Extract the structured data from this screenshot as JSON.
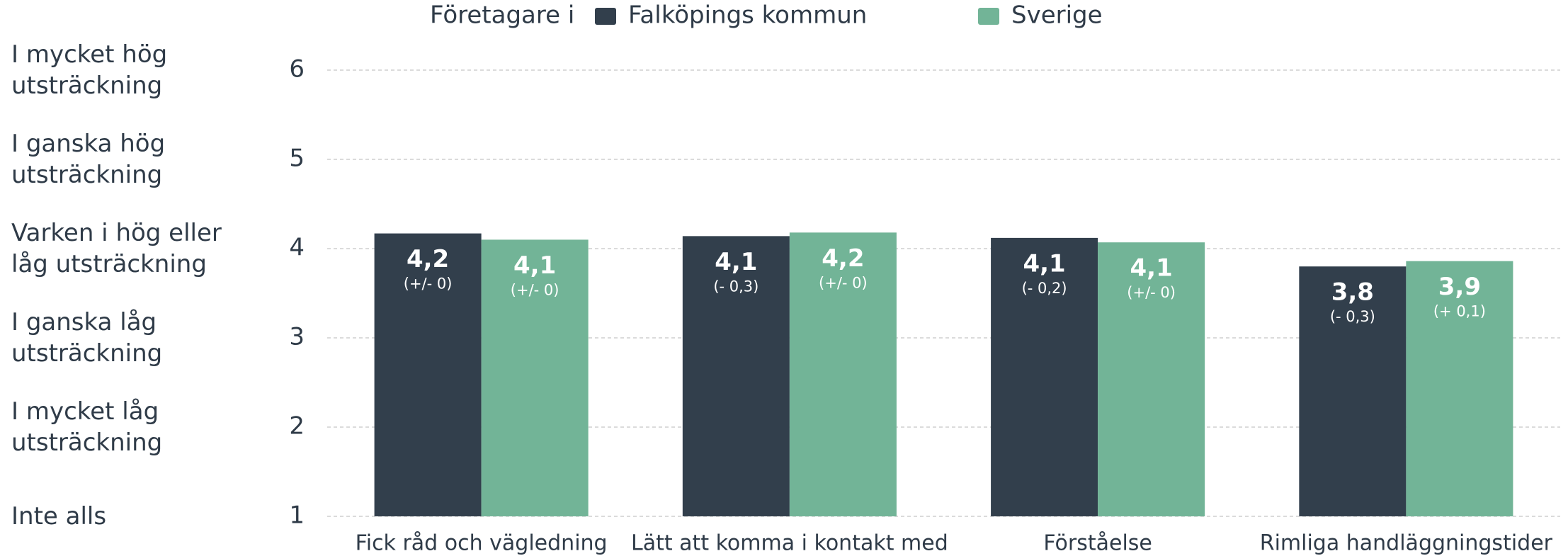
{
  "chart_data": {
    "type": "bar",
    "legend_title": "Företagare i",
    "categories": [
      "Fick råd och vägledning",
      "Lätt att komma i kontakt med",
      "Förståelse",
      "Rimliga handläggningstider"
    ],
    "series": [
      {
        "name": "Falköpings kommun",
        "color": "#323f4c",
        "values": [
          4.17,
          4.14,
          4.12,
          3.8
        ],
        "value_labels": [
          "4,2",
          "4,1",
          "4,1",
          "3,8"
        ],
        "change_labels": [
          "(+/- 0)",
          "(- 0,3)",
          "(- 0,2)",
          "(- 0,3)"
        ]
      },
      {
        "name": "Sverige",
        "color": "#72b497",
        "values": [
          4.1,
          4.18,
          4.07,
          3.86
        ],
        "value_labels": [
          "4,1",
          "4,2",
          "4,1",
          "3,9"
        ],
        "change_labels": [
          "(+/- 0)",
          "(+/- 0)",
          "(+/- 0)",
          "(+ 0,1)"
        ]
      }
    ],
    "ylim": [
      1,
      6
    ],
    "yticks": [
      1,
      2,
      3,
      4,
      5,
      6
    ],
    "grid": true,
    "ylevel_labels": [
      "Inte alls",
      "I mycket låg utsträckning",
      "I ganska låg utsträckning",
      "Varken i hög eller låg utsträckning",
      "I ganska hög utsträckning",
      "I mycket hög utsträckning"
    ]
  }
}
